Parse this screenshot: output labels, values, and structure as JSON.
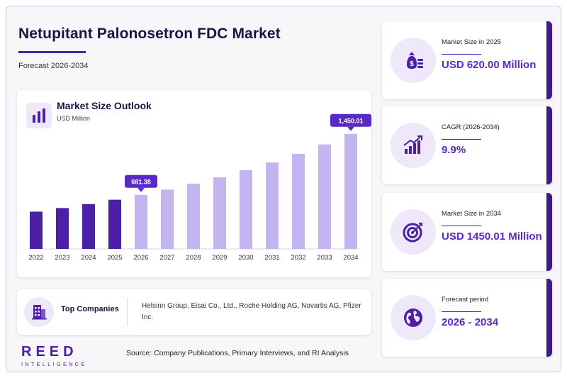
{
  "header": {
    "title": "Netupitant Palonosetron FDC Market",
    "subtitle": "Forecast 2026-2034"
  },
  "chart_card": {
    "title": "Market Size Outlook",
    "unit": "USD Million"
  },
  "chart_data": {
    "type": "bar",
    "title": "Market Size Outlook",
    "ylabel": "USD Million",
    "categories": [
      "2022",
      "2023",
      "2024",
      "2025",
      "2026",
      "2027",
      "2028",
      "2029",
      "2030",
      "2031",
      "2032",
      "2033",
      "2034"
    ],
    "values": [
      470,
      515,
      565,
      620,
      681.38,
      748,
      822,
      903,
      992,
      1090,
      1198,
      1317,
      1450.01
    ],
    "value_labels": [
      {
        "category": "2026",
        "text": "681.38"
      },
      {
        "category": "2034",
        "text": "1,450.01"
      }
    ],
    "colors": {
      "historical": "#4b1fa6",
      "forecast": "#c4b4f0",
      "callout": "#5a28c8"
    },
    "forecast_start": "2026",
    "ylim": [
      0,
      1600
    ],
    "grid": false,
    "legend": "none"
  },
  "companies": {
    "label": "Top Companies",
    "text": "Helsinn Group, Eisai Co., Ltd., Roche Holding AG, Novartis AG, Pfizer Inc."
  },
  "stats": [
    {
      "label": "Market Size in 2025",
      "value": "USD 620.00 Million",
      "icon": "money-bag-icon"
    },
    {
      "label": "CAGR (2026-2034)",
      "value": "9.9%",
      "icon": "growth-chart-icon"
    },
    {
      "label": "Market Size in 2034",
      "value": "USD 1450.01 Million",
      "icon": "target-icon"
    },
    {
      "label": "Forecast period",
      "value": "2026 - 2034",
      "icon": "globe-icon"
    }
  ],
  "footer": {
    "source": "Source: Company Publications, Primary Interviews, and RI Analysis",
    "logo_main": "REED",
    "logo_sub": "INTELLIGENCE"
  }
}
